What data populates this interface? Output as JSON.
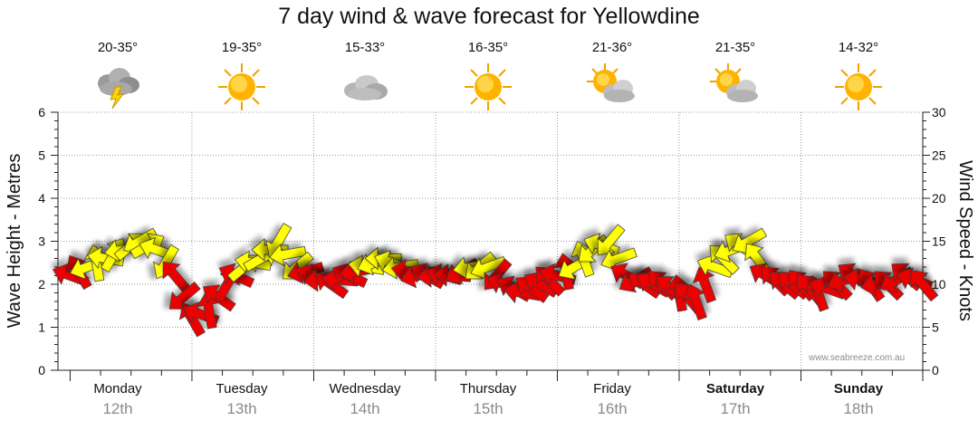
{
  "title": "7 day wind & wave forecast for Yellowdine",
  "credit": "www.seabreeze.com.au",
  "days": [
    {
      "day": "Monday",
      "date": "12th",
      "temp": "20-35°",
      "icon": "storm-cloud-icon",
      "bold": false
    },
    {
      "day": "Tuesday",
      "date": "13th",
      "temp": "19-35°",
      "icon": "sun-icon",
      "bold": false
    },
    {
      "day": "Wednesday",
      "date": "14th",
      "temp": "15-33°",
      "icon": "cloud-icon",
      "bold": false
    },
    {
      "day": "Thursday",
      "date": "15th",
      "temp": "16-35°",
      "icon": "sun-icon",
      "bold": false
    },
    {
      "day": "Friday",
      "date": "16th",
      "temp": "21-36°",
      "icon": "sun-cloud-icon",
      "bold": false
    },
    {
      "day": "Saturday",
      "date": "17th",
      "temp": "21-35°",
      "icon": "sun-cloud-icon",
      "bold": true
    },
    {
      "day": "Sunday",
      "date": "18th",
      "temp": "14-32°",
      "icon": "sun-icon",
      "bold": true
    }
  ],
  "colors": {
    "strong": "#ee0000",
    "moderate": "#ffff00",
    "outline": "#333333",
    "grid": "#9a9a9a"
  },
  "chart_data": {
    "type": "line",
    "title": "7 day wind & wave forecast for Yellowdine",
    "ylabel_left": "Wave Height - Metres",
    "ylabel_right": "Wind Speed - Knots",
    "y_left_range": [
      0,
      6
    ],
    "y_left_ticks": [
      "0",
      "1",
      "2",
      "3",
      "4",
      "5",
      "6"
    ],
    "y_right_range": [
      0,
      30
    ],
    "y_right_ticks": [
      "0",
      "5",
      "10",
      "15",
      "20",
      "25",
      "30"
    ],
    "x_unit": "day index (0 = Monday 12th 00:00)",
    "x_range": [
      -0.1,
      7.0
    ],
    "wind_speed_knots": {
      "x": [
        0.0,
        0.14,
        0.29,
        0.43,
        0.57,
        0.71,
        0.86,
        1.0,
        1.14,
        1.29,
        1.43,
        1.57,
        1.71,
        1.86,
        2.0,
        2.14,
        2.29,
        2.43,
        2.57,
        2.71,
        2.86,
        3.0,
        3.14,
        3.29,
        3.43,
        3.57,
        3.71,
        3.86,
        4.0,
        4.14,
        4.29,
        4.43,
        4.57,
        4.71,
        4.86,
        5.0,
        5.14,
        5.29,
        5.43,
        5.57,
        5.71,
        5.86,
        6.0,
        6.14,
        6.29,
        6.43,
        6.57,
        6.71,
        6.86,
        7.0
      ],
      "values": [
        11,
        12,
        13,
        14,
        15,
        14,
        11,
        6,
        7,
        10,
        12,
        13,
        15,
        12,
        11,
        10,
        11,
        12,
        13,
        12,
        11,
        11,
        11,
        12,
        12,
        10,
        9,
        10,
        11,
        12,
        14,
        15,
        11,
        10,
        10,
        9,
        8,
        12,
        14,
        15,
        11,
        10,
        10,
        9,
        10,
        11,
        10,
        10,
        11,
        10
      ],
      "legend": "arrow colour: yellow = 12-16 knots, red = 8-12 knots (arrows show wind direction)"
    },
    "wave_height_metres": {
      "x": [],
      "values": []
    }
  }
}
